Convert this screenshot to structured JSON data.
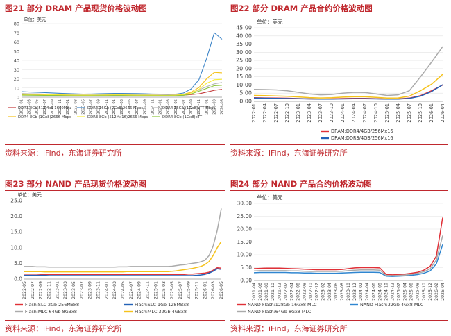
{
  "panels": [
    {
      "title": "图21  部分 DRAM 产品现货价格波动图",
      "source": "资料来源：iFind，东海证券研究所"
    },
    {
      "title": "图22  部分 DRAM 产品合约价格波动图",
      "source": "资料来源：iFind，东海证券研究所"
    },
    {
      "title": "图23  部分 NAND 产品现货价格波动图",
      "source": "资料来源：iFind，东海证券研究所"
    },
    {
      "title": "图24  部分 NAND 产品合约价格波动图",
      "source": "资料来源：iFind，东海证券研究所"
    }
  ],
  "chart_data": [
    {
      "type": "line",
      "unit_label": "单位：美元",
      "ylim": [
        0,
        80
      ],
      "yticks": [
        0,
        10,
        20,
        30,
        40,
        50,
        60,
        70,
        80
      ],
      "x": [
        "2022-01",
        "2022-03",
        "2022-05",
        "2022-07",
        "2022-09",
        "2022-11",
        "2023-01",
        "2023-03",
        "2023-05",
        "2023-07",
        "2023-09",
        "2023-11",
        "2024-01",
        "2024-03",
        "2024-05",
        "2024-07",
        "2024-09",
        "2024-11",
        "2025-01",
        "2025-03",
        "2025-05",
        "2025-07",
        "2025-09",
        "2025-11",
        "2026-01",
        "2026-03",
        "2026-05"
      ],
      "legend_position": "bottom",
      "series": [
        {
          "name": "DDR3 4Gb 512Mx8 1600MHz",
          "color": "#c43b3b",
          "values": [
            3.0,
            2.9,
            2.8,
            2.6,
            2.4,
            2.2,
            2.0,
            1.9,
            1.8,
            1.7,
            1.7,
            1.8,
            1.9,
            1.9,
            1.9,
            1.8,
            1.7,
            1.7,
            1.6,
            1.6,
            1.7,
            2.1,
            2.9,
            3.6,
            5.5,
            7.5,
            8.5
          ]
        },
        {
          "name": "DDR4 16Gb (2Gx8)2666 Mbps",
          "color": "#3f86c8",
          "values": [
            6.0,
            5.6,
            5.3,
            5.0,
            4.6,
            4.2,
            3.9,
            3.6,
            3.4,
            3.5,
            3.7,
            3.9,
            4.1,
            4.1,
            4.0,
            3.9,
            3.7,
            3.5,
            3.3,
            3.2,
            3.3,
            4.5,
            9.0,
            19.0,
            42.0,
            70.0,
            63.0
          ]
        },
        {
          "name": "DDR4 16Gb (1Gx8)eTT Mbps",
          "color": "#b8b8b8",
          "values": [
            4.0,
            3.8,
            3.6,
            3.4,
            3.2,
            3.0,
            2.8,
            2.6,
            2.5,
            2.5,
            2.6,
            2.7,
            2.8,
            2.8,
            2.8,
            2.7,
            2.6,
            2.5,
            2.4,
            2.4,
            2.6,
            3.3,
            5.0,
            7.8,
            11.5,
            14.5,
            16.0
          ]
        },
        {
          "name": "DDR4 8Gb (1Gx8)2666 Mbps",
          "color": "#f5c21b",
          "values": [
            3.5,
            3.3,
            3.2,
            3.0,
            2.8,
            2.6,
            2.4,
            2.3,
            2.2,
            2.2,
            2.3,
            2.4,
            2.5,
            2.5,
            2.4,
            2.3,
            2.2,
            2.1,
            2.0,
            2.0,
            2.2,
            3.0,
            5.5,
            10.5,
            20.0,
            27.0,
            26.5
          ]
        },
        {
          "name": "DDR3 8Gb (512Mx16)2666 Mbps",
          "color": "#f7ec3a",
          "values": [
            3.2,
            3.0,
            2.9,
            2.8,
            2.6,
            2.4,
            2.3,
            2.2,
            2.1,
            2.1,
            2.2,
            2.3,
            2.4,
            2.4,
            2.3,
            2.2,
            2.1,
            2.0,
            1.9,
            1.9,
            2.0,
            2.6,
            4.5,
            8.5,
            15.0,
            19.0,
            19.5
          ]
        },
        {
          "name": "DDR4 8Gb (1Gx8)eTT",
          "color": "#8cc43c",
          "values": [
            2.2,
            2.1,
            2.0,
            1.9,
            1.8,
            1.7,
            1.6,
            1.5,
            1.5,
            1.5,
            1.6,
            1.6,
            1.7,
            1.7,
            1.6,
            1.5,
            1.5,
            1.4,
            1.4,
            1.4,
            1.5,
            2.0,
            3.5,
            6.5,
            9.5,
            12.5,
            13.0
          ]
        }
      ]
    },
    {
      "type": "line",
      "unit_label": "单位：美元",
      "ylim": [
        0,
        45
      ],
      "yticks": [
        "0.00",
        "5.00",
        "10.00",
        "15.00",
        "20.00",
        "25.00",
        "30.00",
        "35.00",
        "40.00",
        "45.00"
      ],
      "x": [
        "2022-01",
        "2022-04",
        "2022-07",
        "2022-10",
        "2023-01",
        "2023-04",
        "2023-07",
        "2023-10",
        "2024-01",
        "2024-04",
        "2024-07",
        "2024-10",
        "2025-01",
        "2025-04",
        "2025-07",
        "2025-10",
        "2026-01",
        "2026-04"
      ],
      "legend_position": "bottom-right",
      "series": [
        {
          "name": "DRAM:DDR4/4GB/256Mx16",
          "color": "#e03037",
          "values": [
            2.2,
            2.1,
            2.0,
            1.9,
            1.7,
            1.5,
            1.4,
            1.5,
            1.7,
            1.8,
            1.8,
            1.6,
            1.4,
            1.5,
            2.0,
            3.5,
            6.5,
            10.0
          ]
        },
        {
          "name": "DRAM:DDR3/4GB/256Mx16",
          "color": "#2462b7",
          "values": [
            2.0,
            1.9,
            1.8,
            1.7,
            1.6,
            1.5,
            1.4,
            1.4,
            1.5,
            1.6,
            1.6,
            1.5,
            1.4,
            1.4,
            1.8,
            3.2,
            6.0,
            10.2
          ]
        },
        {
          "name": "",
          "color": "#aaaaaa",
          "values": [
            7.3,
            7.2,
            7.0,
            6.5,
            5.5,
            4.5,
            4.0,
            4.2,
            5.0,
            5.5,
            5.4,
            4.5,
            3.6,
            4.0,
            6.5,
            15.0,
            24.0,
            33.5
          ]
        },
        {
          "name": "",
          "color": "#f5c21b",
          "values": [
            3.6,
            3.5,
            3.3,
            3.1,
            2.7,
            2.3,
            2.1,
            2.2,
            2.6,
            2.8,
            2.8,
            2.4,
            2.0,
            2.1,
            3.2,
            6.5,
            10.5,
            16.5
          ]
        }
      ]
    },
    {
      "type": "line",
      "unit_label": "单位：美元",
      "ylim": [
        0,
        25
      ],
      "yticks": [
        "0.0",
        "5.0",
        "10.0",
        "15.0",
        "20.0",
        "25.0"
      ],
      "x": [
        "2022-05",
        "2022-06",
        "2022-07",
        "2022-08",
        "2022-09",
        "2022-10",
        "2022-11",
        "2022-12",
        "2023-01",
        "2023-02",
        "2023-03",
        "2023-04",
        "2023-05",
        "2023-06",
        "2023-07",
        "2023-08",
        "2023-09",
        "2023-10",
        "2023-11",
        "2023-12",
        "2024-01",
        "2024-02",
        "2024-03",
        "2024-04",
        "2024-05",
        "2024-06",
        "2024-07",
        "2024-08",
        "2024-09",
        "2024-10",
        "2024-11",
        "2024-12",
        "2025-01",
        "2025-02",
        "2025-03",
        "2025-04",
        "2025-05",
        "2025-06",
        "2025-07",
        "2025-08",
        "2025-09",
        "2025-10",
        "2025-11",
        "2025-12",
        "2026-01",
        "2026-02",
        "2026-03",
        "2026-04",
        "2026-05"
      ],
      "xlabels": [
        "2022-05",
        "2022-07",
        "2022-09",
        "2022-11",
        "2023-01",
        "2023-03",
        "2023-05",
        "2023-07",
        "2023-09",
        "2023-11",
        "2024-01",
        "2024-03",
        "2024-05",
        "2024-07",
        "2024-09",
        "2024-11",
        "2025-01",
        "2025-03",
        "2025-05",
        "2025-07",
        "2025-09",
        "2025-11",
        "2026-01",
        "2026-03",
        "2026-05"
      ],
      "legend_position": "bottom",
      "series": [
        {
          "name": "Flash:SLC 2Gb 256MBx8",
          "color": "#e03037",
          "values": [
            1.6,
            1.6,
            1.6,
            1.6,
            1.5,
            1.5,
            1.5,
            1.5,
            1.5,
            1.5,
            1.5,
            1.5,
            1.5,
            1.5,
            1.5,
            1.5,
            1.5,
            1.5,
            1.5,
            1.5,
            1.5,
            1.5,
            1.5,
            1.5,
            1.5,
            1.5,
            1.5,
            1.5,
            1.5,
            1.5,
            1.5,
            1.5,
            1.5,
            1.5,
            1.5,
            1.5,
            1.5,
            1.5,
            1.5,
            1.5,
            1.6,
            1.6,
            1.7,
            1.8,
            1.9,
            2.2,
            2.8,
            3.6,
            3.5
          ]
        },
        {
          "name": "Flash:SLC 1Gb 128MBx8",
          "color": "#2462b7",
          "values": [
            1.2,
            1.2,
            1.2,
            1.2,
            1.2,
            1.2,
            1.1,
            1.1,
            1.1,
            1.1,
            1.1,
            1.1,
            1.1,
            1.1,
            1.1,
            1.1,
            1.1,
            1.1,
            1.1,
            1.1,
            1.1,
            1.1,
            1.1,
            1.1,
            1.1,
            1.1,
            1.1,
            1.1,
            1.1,
            1.1,
            1.1,
            1.1,
            1.1,
            1.1,
            1.1,
            1.1,
            1.1,
            1.1,
            1.1,
            1.1,
            1.1,
            1.1,
            1.2,
            1.3,
            1.5,
            1.9,
            2.5,
            3.3,
            3.1
          ]
        },
        {
          "name": "Flash:MLC 64Gb 8GBx8",
          "color": "#aaaaaa",
          "values": [
            4.0,
            4.0,
            4.0,
            3.9,
            3.9,
            3.9,
            3.8,
            3.8,
            3.8,
            3.8,
            3.8,
            3.8,
            3.8,
            3.8,
            3.8,
            3.8,
            3.8,
            3.8,
            3.8,
            3.8,
            3.8,
            3.8,
            3.8,
            3.9,
            3.9,
            3.9,
            4.0,
            4.0,
            4.0,
            4.0,
            4.0,
            4.0,
            4.0,
            4.0,
            4.0,
            4.0,
            4.1,
            4.3,
            4.5,
            4.6,
            4.8,
            5.0,
            5.2,
            5.5,
            6.0,
            7.5,
            10.5,
            15.5,
            22.5
          ]
        },
        {
          "name": "Flash:MLC 32Gb 4GBx8",
          "color": "#f5c21b",
          "values": [
            2.4,
            2.4,
            2.4,
            2.4,
            2.4,
            2.3,
            2.3,
            2.3,
            2.3,
            2.3,
            2.3,
            2.3,
            2.3,
            2.3,
            2.3,
            2.3,
            2.3,
            2.3,
            2.3,
            2.3,
            2.3,
            2.3,
            2.3,
            2.3,
            2.3,
            2.4,
            2.4,
            2.4,
            2.4,
            2.4,
            2.4,
            2.4,
            2.4,
            2.4,
            2.4,
            2.4,
            2.5,
            2.6,
            2.8,
            3.0,
            3.2,
            3.4,
            3.7,
            4.0,
            4.6,
            5.6,
            7.5,
            10.0,
            12.0
          ]
        }
      ]
    },
    {
      "type": "line",
      "unit_label": "单位：美元",
      "ylim": [
        0,
        30
      ],
      "yticks": [
        "0.00",
        "5.00",
        "10.00",
        "15.00",
        "20.00",
        "25.00",
        "30.00"
      ],
      "x": [
        "2021-04",
        "2021-06",
        "2021-08",
        "2021-10",
        "2021-12",
        "2022-02",
        "2022-04",
        "2022-06",
        "2022-08",
        "2022-10",
        "2022-12",
        "2023-02",
        "2023-04",
        "2023-06",
        "2023-08",
        "2023-10",
        "2023-12",
        "2024-02",
        "2024-04",
        "2024-06",
        "2024-08",
        "2024-10",
        "2024-12",
        "2025-02",
        "2025-04",
        "2025-06",
        "2025-08",
        "2025-10",
        "2025-12",
        "2026-02",
        "2026-04"
      ],
      "legend_position": "bottom",
      "series": [
        {
          "name": "NAND Flash:128Gb 16Gx8 MLC",
          "color": "#e03037",
          "values": [
            4.6,
            4.7,
            4.8,
            4.8,
            4.8,
            4.7,
            4.6,
            4.5,
            4.4,
            4.3,
            4.2,
            4.2,
            4.2,
            4.2,
            4.3,
            4.6,
            4.9,
            5.0,
            5.0,
            5.0,
            4.9,
            2.4,
            2.2,
            2.3,
            2.5,
            2.8,
            3.2,
            4.0,
            5.5,
            9.5,
            24.5
          ]
        },
        {
          "name": "NAND Flash:32Gb 4Gx8 MLC",
          "color": "#2f86d0",
          "values": [
            3.0,
            3.1,
            3.1,
            3.1,
            3.1,
            3.1,
            3.0,
            3.0,
            2.9,
            2.9,
            2.8,
            2.8,
            2.8,
            2.8,
            2.9,
            3.0,
            3.1,
            3.2,
            3.2,
            3.2,
            3.1,
            1.7,
            1.6,
            1.7,
            1.8,
            2.0,
            2.3,
            2.8,
            3.7,
            6.5,
            14.0
          ]
        },
        {
          "name": "NAND Flash:64Gb 8Gx8 MLC",
          "color": "#aaaaaa",
          "values": [
            3.7,
            3.8,
            3.8,
            3.8,
            3.8,
            3.8,
            3.7,
            3.7,
            3.6,
            3.5,
            3.5,
            3.5,
            3.5,
            3.5,
            3.6,
            3.8,
            4.0,
            4.1,
            4.1,
            4.1,
            4.0,
            2.0,
            1.9,
            2.0,
            2.1,
            2.4,
            2.8,
            3.4,
            4.5,
            8.0,
            17.5
          ]
        }
      ]
    }
  ]
}
